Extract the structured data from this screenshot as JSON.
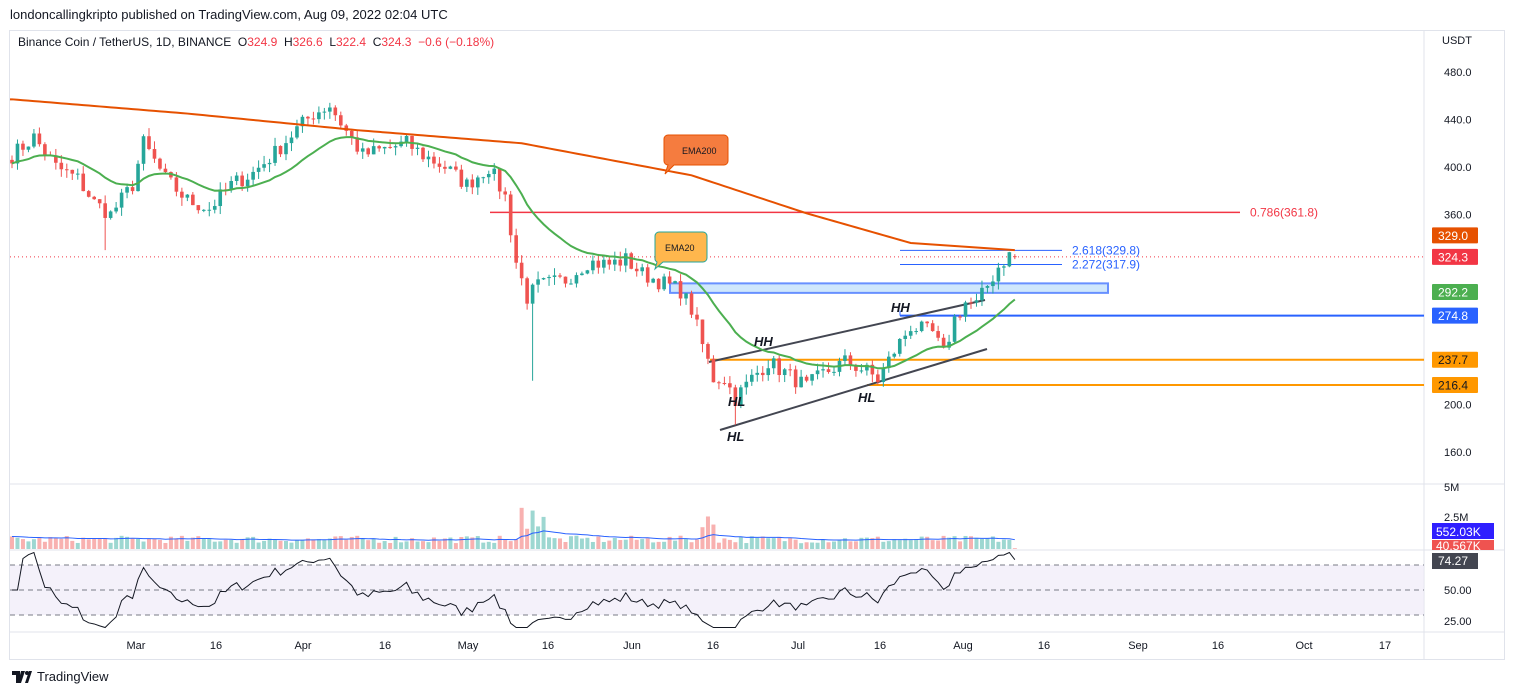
{
  "header": {
    "published": "londoncallingkripto published on TradingView.com, Aug 09, 2022 02:04 UTC"
  },
  "legend": {
    "symbol": "Binance Coin / TetherUS, 1D, BINANCE",
    "o_label": "O",
    "o": "324.9",
    "h_label": "H",
    "h": "326.6",
    "l_label": "L",
    "l": "322.4",
    "c_label": "C",
    "c": "324.3",
    "change": "−0.6 (−0.18%)"
  },
  "footer": {
    "brand": "TradingView"
  },
  "colors": {
    "up": "#26a69a",
    "down": "#ef5350",
    "ema200": "#e65100",
    "ema20": "#4caf50",
    "fib": "#2962ff",
    "orange": "#ff9800",
    "red_level": "#f23645"
  },
  "chart_data": {
    "type": "candlestick",
    "title": "Binance Coin / TetherUS, 1D, BINANCE",
    "currency": "USDT",
    "ylim": [
      140,
      500
    ],
    "price_ticks": [
      "480.0",
      "440.0",
      "400.0",
      "360.0",
      "200.0",
      "160.0"
    ],
    "time_ticks": [
      "Mar",
      "16",
      "Apr",
      "16",
      "May",
      "16",
      "Jun",
      "16",
      "Jul",
      "16",
      "Aug",
      "16",
      "Sep",
      "16",
      "Oct",
      "17"
    ],
    "start_date": "2022-02-06",
    "close_path": [
      [
        "02-06",
        410
      ],
      [
        "02-10",
        425
      ],
      [
        "02-14",
        400
      ],
      [
        "02-18",
        390
      ],
      [
        "02-21",
        370
      ],
      [
        "02-24",
        360
      ],
      [
        "02-28",
        385
      ],
      [
        "03-02",
        420
      ],
      [
        "03-06",
        390
      ],
      [
        "03-10",
        372
      ],
      [
        "03-14",
        365
      ],
      [
        "03-18",
        385
      ],
      [
        "03-22",
        395
      ],
      [
        "03-26",
        412
      ],
      [
        "03-30",
        432
      ],
      [
        "04-02",
        445
      ],
      [
        "04-05",
        452
      ],
      [
        "04-08",
        430
      ],
      [
        "04-11",
        410
      ],
      [
        "04-15",
        415
      ],
      [
        "04-19",
        420
      ],
      [
        "04-22",
        410
      ],
      [
        "04-26",
        400
      ],
      [
        "04-30",
        385
      ],
      [
        "05-04",
        400
      ],
      [
        "05-07",
        375
      ],
      [
        "05-09",
        320
      ],
      [
        "05-11",
        290
      ],
      [
        "05-13",
        300
      ],
      [
        "05-18",
        305
      ],
      [
        "05-22",
        320
      ],
      [
        "05-26",
        318
      ],
      [
        "05-29",
        322
      ],
      [
        "06-01",
        310
      ],
      [
        "06-05",
        302
      ],
      [
        "06-08",
        296
      ],
      [
        "06-10",
        280
      ],
      [
        "06-12",
        250
      ],
      [
        "06-14",
        222
      ],
      [
        "06-16",
        222
      ],
      [
        "06-18",
        205
      ],
      [
        "06-21",
        222
      ],
      [
        "06-24",
        236
      ],
      [
        "06-28",
        224
      ],
      [
        "07-01",
        215
      ],
      [
        "07-04",
        226
      ],
      [
        "07-08",
        236
      ],
      [
        "07-12",
        228
      ],
      [
        "07-14",
        221
      ],
      [
        "07-17",
        245
      ],
      [
        "07-20",
        266
      ],
      [
        "07-24",
        260
      ],
      [
        "07-26",
        242
      ],
      [
        "07-28",
        272
      ],
      [
        "07-30",
        286
      ],
      [
        "08-01",
        284
      ],
      [
        "08-03",
        300
      ],
      [
        "08-05",
        316
      ],
      [
        "08-07",
        326
      ],
      [
        "08-08",
        324.3
      ]
    ],
    "ema200_path": [
      [
        "02-06",
        457
      ],
      [
        "03-10",
        445
      ],
      [
        "04-10",
        431
      ],
      [
        "05-10",
        420
      ],
      [
        "06-10",
        393
      ],
      [
        "07-01",
        361
      ],
      [
        "07-20",
        336
      ],
      [
        "08-08",
        330
      ]
    ],
    "indicators": {
      "ema200_label": "EMA200",
      "ema20_label": "EMA20"
    },
    "levels": [
      {
        "name": "fib-0.786",
        "label": "0.786(361.8)",
        "price": 361.8,
        "color": "#f23645"
      },
      {
        "name": "fib-2.618",
        "label": "2.618(329.8)",
        "price": 329.8,
        "color": "#2962ff"
      },
      {
        "name": "fib-2.272",
        "label": "2.272(317.9)",
        "price": 317.9,
        "color": "#2962ff"
      }
    ],
    "support_zone": [
      294,
      302
    ],
    "annotations": [
      "HH",
      "HH",
      "HL",
      "HL",
      "HL"
    ],
    "price_badges": [
      {
        "label": "329.0",
        "price": 329.0,
        "color": "#e65100"
      },
      {
        "label": "324.3",
        "price": 324.3,
        "color": "#f23645"
      },
      {
        "label": "292.2",
        "price": 292.2,
        "color": "#4caf50"
      },
      {
        "label": "274.8",
        "price": 274.8,
        "color": "#2962ff"
      },
      {
        "label": "237.7",
        "price": 237.7,
        "color": "#ff9800"
      },
      {
        "label": "216.4",
        "price": 216.4,
        "color": "#ff9800"
      }
    ],
    "volume": {
      "ticks": [
        "5M",
        "2.5M"
      ],
      "ma_badge": "552.03K",
      "last_badge": "40.567K"
    },
    "rsi": {
      "value": "74.27",
      "ticks": [
        "50.00",
        "25.00"
      ],
      "bands": [
        70,
        50,
        30
      ]
    }
  }
}
